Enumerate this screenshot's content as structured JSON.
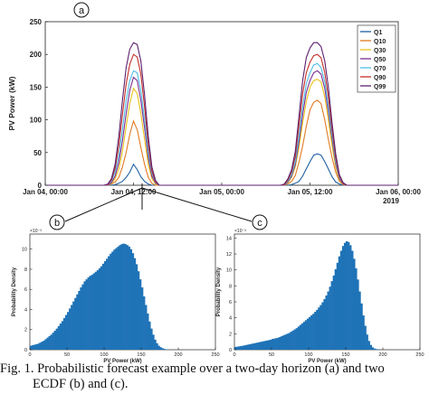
{
  "caption": {
    "line1": "Fig. 1.   Probabilistic forecast example over a two-day horizon (a) and two",
    "line2": "ECDF (b) and (c)."
  },
  "chart_data": [
    {
      "panel": "a",
      "type": "line",
      "ylabel": "PV Power (kW)",
      "ylim": [
        0,
        250
      ],
      "yticks": [
        "0",
        "50",
        "100",
        "150",
        "200",
        "250"
      ],
      "xticks": [
        "Jan 04, 00:00",
        "Jan 04, 12:00",
        "Jan 05, 00:00",
        "Jan 05, 12:00",
        "Jan 06, 00:00"
      ],
      "xyear": "2019",
      "xlim": [
        0,
        48
      ],
      "legend_position": "top-right",
      "x": [
        0,
        6,
        6.5,
        7,
        7.5,
        8,
        8.5,
        9,
        9.5,
        10,
        10.5,
        11,
        11.5,
        12,
        12.5,
        13,
        13.5,
        14,
        14.5,
        15,
        15.5,
        16,
        16.5,
        17,
        17.5,
        18,
        24,
        30,
        30.5,
        31,
        31.5,
        32,
        32.5,
        33,
        33.5,
        34,
        34.5,
        35,
        35.5,
        36,
        36.5,
        37,
        37.5,
        38,
        38.5,
        39,
        39.5,
        40,
        40.5,
        41,
        41.5,
        42,
        48
      ],
      "series": [
        {
          "name": "Q1",
          "color": "#1f5fa0",
          "values": [
            0,
            0,
            0,
            0,
            0,
            0,
            0,
            0,
            1,
            3,
            6,
            12,
            20,
            32,
            24,
            13,
            6,
            2,
            0,
            0,
            0,
            0,
            0,
            0,
            0,
            0,
            0,
            0,
            0,
            0,
            0,
            0,
            0,
            0,
            1,
            3,
            6,
            14,
            25,
            36,
            46,
            48,
            46,
            36,
            25,
            13,
            5,
            2,
            0,
            0,
            0,
            0,
            0
          ]
        },
        {
          "name": "Q10",
          "color": "#e07b22",
          "values": [
            0,
            0,
            0,
            0,
            0,
            0,
            0,
            2,
            5,
            12,
            28,
            50,
            78,
            98,
            85,
            58,
            32,
            12,
            3,
            0,
            0,
            0,
            0,
            0,
            0,
            0,
            0,
            0,
            0,
            0,
            0,
            0,
            0,
            2,
            6,
            15,
            35,
            60,
            90,
            115,
            127,
            130,
            125,
            100,
            70,
            42,
            20,
            6,
            1,
            0,
            0,
            0,
            0
          ]
        },
        {
          "name": "Q30",
          "color": "#e9c21a",
          "values": [
            0,
            0,
            0,
            0,
            0,
            0,
            0,
            3,
            10,
            25,
            52,
            90,
            125,
            148,
            140,
            110,
            70,
            32,
            10,
            2,
            0,
            0,
            0,
            0,
            0,
            0,
            0,
            0,
            0,
            0,
            0,
            0,
            0,
            4,
            12,
            28,
            58,
            95,
            128,
            150,
            160,
            162,
            158,
            135,
            100,
            60,
            28,
            8,
            2,
            0,
            0,
            0,
            0
          ]
        },
        {
          "name": "Q50",
          "color": "#7e2d8e",
          "values": [
            0,
            0,
            0,
            0,
            0,
            0,
            0,
            4,
            14,
            35,
            68,
            110,
            145,
            165,
            160,
            130,
            88,
            42,
            14,
            3,
            0,
            0,
            0,
            0,
            0,
            0,
            0,
            0,
            0,
            0,
            0,
            0,
            0,
            5,
            14,
            32,
            66,
            108,
            142,
            160,
            172,
            175,
            170,
            148,
            112,
            70,
            33,
            10,
            2,
            0,
            0,
            0,
            0
          ]
        },
        {
          "name": "Q70",
          "color": "#4fbde6",
          "values": [
            0,
            0,
            0,
            0,
            0,
            0,
            1,
            6,
            20,
            45,
            85,
            130,
            160,
            175,
            172,
            145,
            100,
            50,
            18,
            4,
            0,
            0,
            0,
            0,
            0,
            0,
            0,
            0,
            0,
            0,
            0,
            0,
            1,
            6,
            16,
            36,
            74,
            120,
            155,
            172,
            184,
            186,
            180,
            158,
            120,
            76,
            36,
            12,
            3,
            0,
            0,
            0,
            0
          ]
        },
        {
          "name": "Q90",
          "color": "#c2302a",
          "values": [
            0,
            0,
            0,
            0,
            0,
            0,
            1,
            8,
            26,
            60,
            108,
            155,
            185,
            200,
            196,
            170,
            120,
            62,
            22,
            5,
            0,
            0,
            0,
            0,
            0,
            0,
            0,
            0,
            0,
            0,
            0,
            0,
            1,
            8,
            20,
            44,
            90,
            140,
            172,
            188,
            198,
            200,
            195,
            172,
            135,
            85,
            42,
            14,
            3,
            0,
            0,
            0,
            0
          ]
        },
        {
          "name": "Q99",
          "color": "#5c1f6e",
          "values": [
            0,
            0,
            0,
            0,
            0,
            0,
            2,
            10,
            32,
            75,
            130,
            180,
            208,
            218,
            215,
            190,
            138,
            75,
            28,
            7,
            0,
            0,
            0,
            0,
            0,
            0,
            0,
            0,
            0,
            0,
            0,
            0,
            2,
            10,
            24,
            52,
            105,
            160,
            195,
            210,
            218,
            218,
            212,
            190,
            150,
            95,
            48,
            16,
            4,
            0,
            0,
            0,
            0
          ]
        }
      ]
    },
    {
      "panel": "b",
      "type": "bar",
      "xlabel": "PV Power (kW)",
      "ylabel": "Probability Density",
      "yexponent": "×10⁻³",
      "xlim": [
        0,
        250
      ],
      "ylim": [
        0,
        11.5
      ],
      "xticks": [
        "0",
        "50",
        "100",
        "150",
        "200",
        "250"
      ],
      "yticks": [
        "0",
        "2",
        "4",
        "6",
        "8",
        "10"
      ],
      "color": "#1f73b7",
      "bin_start": 0,
      "bin_width": 2.5,
      "values": [
        0.4,
        0.45,
        0.5,
        0.55,
        0.6,
        0.7,
        0.8,
        0.9,
        1.05,
        1.2,
        1.35,
        1.5,
        1.7,
        1.9,
        2.1,
        2.35,
        2.6,
        2.85,
        3.15,
        3.45,
        3.75,
        4.1,
        4.45,
        4.8,
        5.15,
        5.5,
        5.85,
        6.2,
        6.5,
        6.8,
        7.0,
        7.2,
        7.35,
        7.45,
        7.6,
        7.75,
        7.9,
        8.1,
        8.3,
        8.55,
        8.8,
        9.05,
        9.3,
        9.55,
        9.75,
        9.95,
        10.1,
        10.25,
        10.4,
        10.5,
        10.55,
        10.5,
        10.4,
        10.25,
        10.0,
        9.6,
        9.1,
        8.5,
        7.8,
        7.0,
        6.2,
        5.3,
        4.45,
        3.6,
        2.8,
        2.1,
        1.5,
        1.0,
        0.65,
        0.4,
        0.25,
        0.15,
        0.08,
        0.04,
        0.02
      ]
    },
    {
      "panel": "c",
      "type": "bar",
      "xlabel": "PV Power (kW)",
      "ylabel": "Probability Density",
      "yexponent": "×10⁻³",
      "xlim": [
        0,
        250
      ],
      "ylim": [
        0,
        14.5
      ],
      "xticks": [
        "0",
        "50",
        "100",
        "150",
        "200",
        "250"
      ],
      "yticks": [
        "0",
        "2",
        "4",
        "6",
        "8",
        "10",
        "12",
        "14"
      ],
      "color": "#1f73b7",
      "bin_start": 0,
      "bin_width": 2.5,
      "values": [
        0.35,
        0.38,
        0.42,
        0.45,
        0.5,
        0.55,
        0.6,
        0.65,
        0.7,
        0.75,
        0.8,
        0.85,
        0.9,
        0.95,
        1.0,
        1.05,
        1.1,
        1.15,
        1.2,
        1.25,
        1.35,
        1.4,
        1.45,
        1.5,
        1.6,
        1.7,
        1.8,
        1.9,
        2.0,
        2.1,
        2.25,
        2.4,
        2.55,
        2.7,
        2.9,
        3.1,
        3.3,
        3.5,
        3.7,
        3.9,
        4.1,
        4.3,
        4.5,
        4.75,
        5.0,
        5.3,
        5.6,
        5.95,
        6.35,
        6.8,
        7.3,
        7.9,
        8.6,
        9.3,
        10.1,
        10.9,
        11.7,
        12.4,
        13.0,
        13.4,
        13.6,
        13.5,
        13.1,
        12.4,
        11.4,
        10.2,
        8.8,
        7.3,
        5.8,
        4.3,
        3.0,
        1.9,
        1.1,
        0.6,
        0.3,
        0.15,
        0.08,
        0.04
      ]
    }
  ],
  "panel_labels": [
    "a",
    "b",
    "c"
  ]
}
